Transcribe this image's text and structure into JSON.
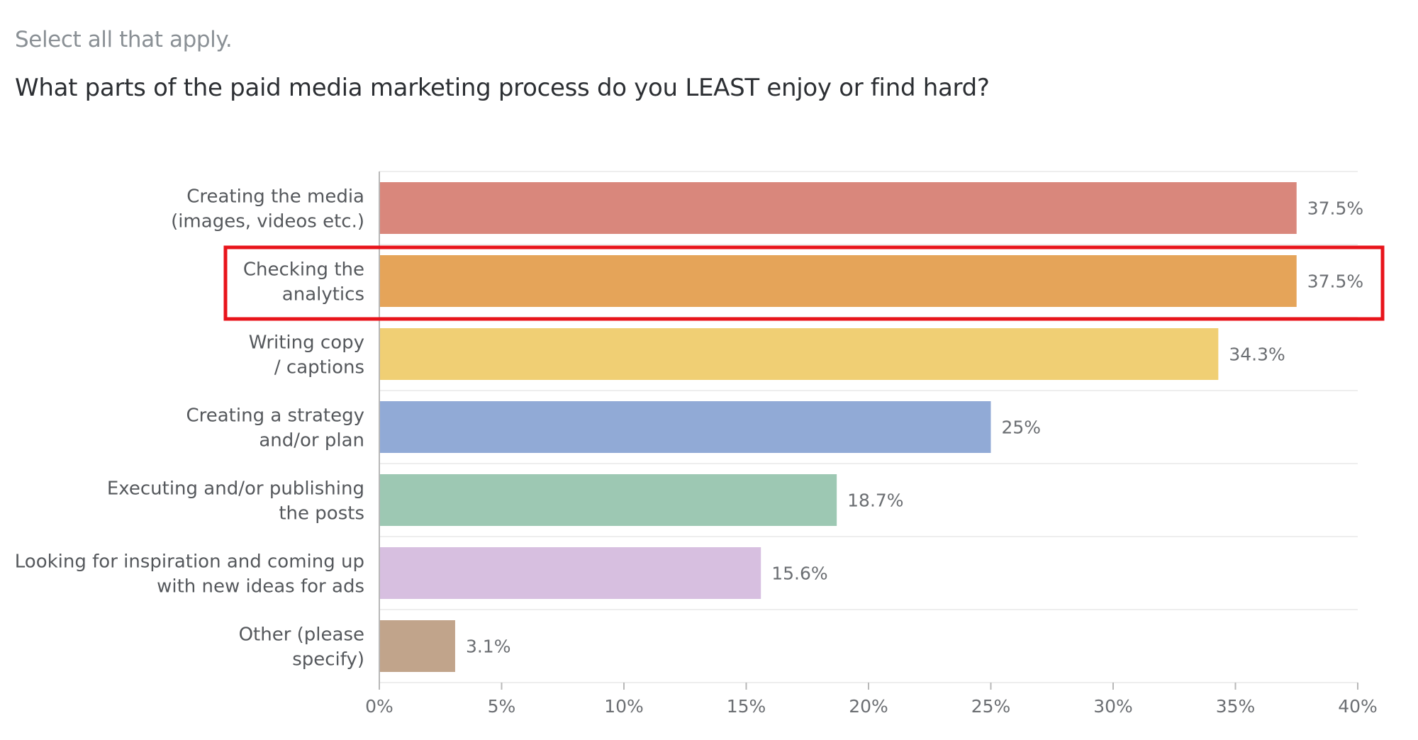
{
  "instruction": "Select all that apply.",
  "question": "What parts of the paid media marketing process do you LEAST enjoy or find hard?",
  "highlight_color": "#e8141b",
  "chart_data": {
    "type": "bar",
    "orientation": "horizontal",
    "categories": [
      [
        "Creating the media",
        "(images, videos etc.)"
      ],
      [
        "Checking the",
        "analytics"
      ],
      [
        "Writing copy",
        "/ captions"
      ],
      [
        "Creating a strategy",
        "and/or plan"
      ],
      [
        "Executing and/or publishing",
        "the posts"
      ],
      [
        "Looking for inspiration and coming up",
        "with new ideas for ads"
      ],
      [
        "Other (please",
        "specify)"
      ]
    ],
    "values": [
      37.5,
      37.5,
      34.3,
      25,
      18.7,
      15.6,
      3.1
    ],
    "value_labels": [
      "37.5%",
      "37.5%",
      "34.3%",
      "25%",
      "18.7%",
      "15.6%",
      "3.1%"
    ],
    "colors": [
      "#d9877c",
      "#e5a459",
      "#f0cf74",
      "#91aad6",
      "#9dc8b3",
      "#d7bfe0",
      "#c1a48b"
    ],
    "xlim": [
      0,
      40
    ],
    "xticks": [
      "0%",
      "5%",
      "10%",
      "15%",
      "20%",
      "25%",
      "30%",
      "35%",
      "40%"
    ],
    "grid": true,
    "highlighted_category": "Checking the analytics"
  }
}
